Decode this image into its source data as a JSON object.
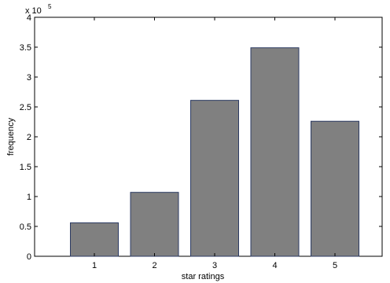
{
  "chart_data": {
    "type": "bar",
    "title": "",
    "xlabel": "star ratings",
    "ylabel": "frequency",
    "categories": [
      "1",
      "2",
      "3",
      "4",
      "5"
    ],
    "values": [
      56000,
      107000,
      261000,
      349000,
      226000
    ],
    "ylim": [
      0,
      400000
    ],
    "y_ticks": [
      0,
      50000,
      100000,
      150000,
      200000,
      250000,
      300000,
      350000,
      400000
    ],
    "y_tick_labels": [
      "0",
      "0.5",
      "1",
      "1.5",
      "2",
      "2.5",
      "3",
      "3.5",
      "4"
    ],
    "y_scale_base": "x 10",
    "y_scale_exponent": "5",
    "grid": false,
    "legend": "none",
    "bar_color": "#808080",
    "bar_edge_color": "#2b3a63"
  }
}
